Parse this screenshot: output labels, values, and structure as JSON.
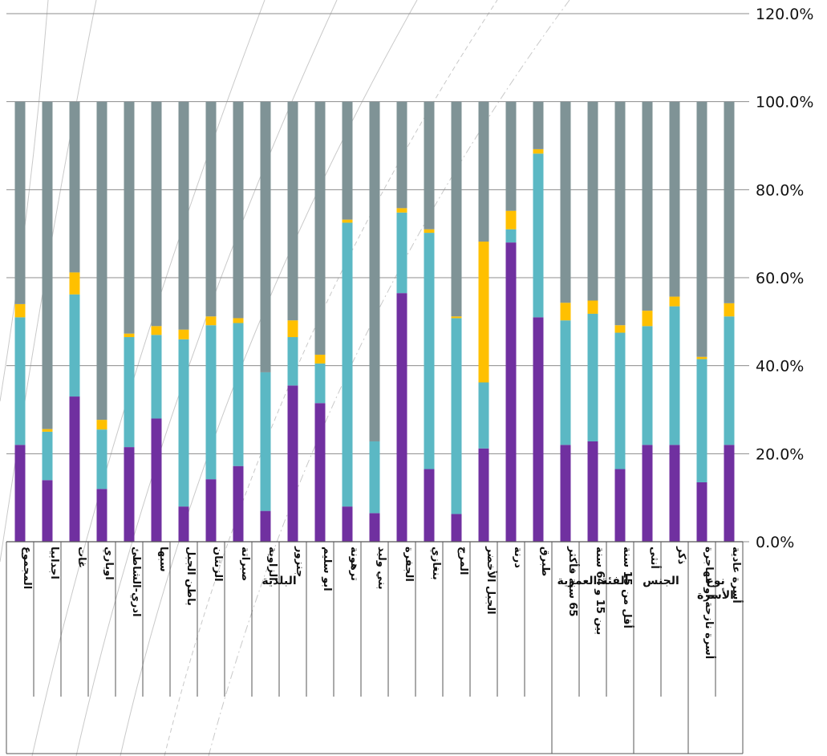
{
  "chart_data": {
    "type": "bar",
    "stacked": true,
    "ylim": [
      0,
      120
    ],
    "yticks": [
      "0.0%",
      "20.0%",
      "40.0%",
      "60.0%",
      "80.0%",
      "100.0%",
      "120.0%"
    ],
    "yaxis_side": "right",
    "grid": true,
    "categories": [
      "المجموع",
      "اجدابيا",
      "غات",
      "اوباري",
      "ادري-الشاطئ",
      "سبها",
      "باطن الجبل",
      "الزنتان",
      "صبراتة",
      "الزاوية",
      "جنزور",
      "ابو سليم",
      "ترهونة",
      "بني وليد",
      "الجفرة",
      "بنغازي",
      "المرج",
      "الجبل الأخضر",
      "درنة",
      "طبرق",
      "65 سنة فأكثر",
      "بين 15 و 64 سنة",
      "أقل من 15 سنة",
      "أنثى",
      "ذكر",
      "أسرة نازحة أو مهاجرة",
      "أسرة عادية"
    ],
    "groups": [
      {
        "label": "البلدية",
        "count": 20
      },
      {
        "label": "الفئة العمرية",
        "count": 3
      },
      {
        "label": "الجنس",
        "count": 2
      },
      {
        "label": "نوع الأسرة",
        "count": 2
      }
    ],
    "series": [
      {
        "color": "#7030a0",
        "values": [
          22,
          14,
          33,
          12,
          21.5,
          28,
          8,
          14.2,
          17.2,
          7,
          35.5,
          31.5,
          8,
          6.5,
          56.5,
          16.5,
          6.3,
          21.2,
          68,
          51,
          22,
          22.8,
          16.5,
          22,
          22,
          13.5,
          22
        ]
      },
      {
        "color": "#5bb8c4",
        "values": [
          29,
          11,
          23.2,
          13.5,
          25,
          19,
          38,
          35,
          32.5,
          31.5,
          11,
          9,
          64.5,
          16.3,
          18.3,
          53.7,
          44.5,
          15,
          3,
          37.2,
          28.3,
          29,
          31,
          27,
          31.5,
          28,
          29.2
        ]
      },
      {
        "color": "#ffc000",
        "values": [
          3,
          0.6,
          5,
          2.2,
          0.8,
          2,
          2.2,
          2,
          1.1,
          0,
          3.8,
          2,
          0.7,
          0,
          1,
          0.8,
          0.4,
          32,
          4.2,
          1,
          4,
          3,
          1.7,
          3.5,
          2.2,
          0.5,
          3
        ]
      },
      {
        "color": "#7f9396",
        "values": [
          46,
          74.4,
          38.8,
          72.3,
          52.7,
          51,
          51.8,
          48.8,
          49.2,
          61.5,
          49.7,
          57.5,
          26.8,
          77.2,
          24.2,
          29,
          48.8,
          31.8,
          24.8,
          10.8,
          45.7,
          45.2,
          50.8,
          47.5,
          44.3,
          58,
          45.8
        ]
      }
    ]
  }
}
